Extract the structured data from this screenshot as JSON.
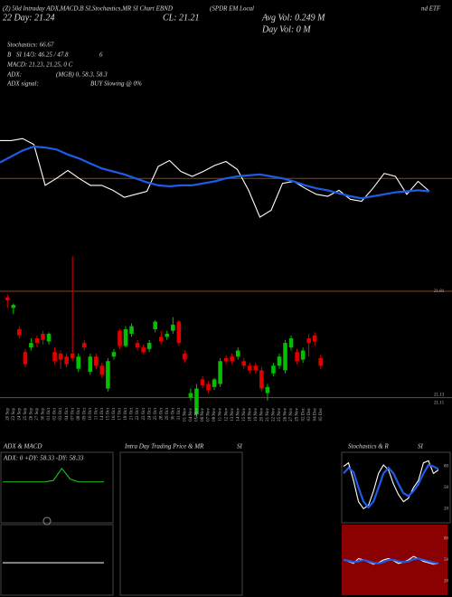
{
  "header": {
    "title": "(Z) 50d Intraday ADX,MACD,B SI,Stochastics,MR SI Chart EBND",
    "name": "(SPDR EM Local",
    "name_end": "nd ETF",
    "avg_vol": "Avg Vol: 0.249 M",
    "day_vol": "Day Vol: 0 M",
    "close": "CL: 21.21",
    "day22": "22 Day: 21.24",
    "stats": [
      "Stochastics: 66.67",
      "B",
      "SI 14/3: 46.25 / 47.8",
      "6",
      "MACD: 21.23, 21.25, 0  C",
      "ADX:",
      "(MGB) 0, 58.3, 58.3",
      "ADX signal:",
      "BUY Slowing @ 0%"
    ]
  },
  "chart_data": [
    {
      "type": "line",
      "ylim": [
        0,
        100
      ],
      "hline": 48,
      "hline_color": "#8b4513",
      "series": [
        {
          "color": "#ffffff",
          "values": [
            86,
            86,
            88,
            82,
            41,
            48,
            56,
            48,
            41,
            41,
            36,
            29,
            32,
            35,
            60,
            66,
            55,
            50,
            55,
            61,
            65,
            57,
            36,
            9,
            16,
            43,
            45,
            38,
            32,
            30,
            36,
            27,
            25,
            38,
            53,
            50,
            32,
            45,
            35
          ]
        },
        {
          "color": "#1e5be6",
          "values": [
            64,
            70,
            76,
            80,
            79,
            77,
            72,
            68,
            63,
            58,
            55,
            52,
            48,
            44,
            41,
            40,
            41,
            41,
            43,
            45,
            48,
            50,
            51,
            52,
            50,
            48,
            45,
            41,
            38,
            36,
            33,
            30,
            28,
            30,
            32,
            34,
            35,
            36,
            35
          ]
        }
      ]
    },
    {
      "type": "candlestick",
      "ylim": [
        21.06,
        22.06
      ],
      "yticks": [
        21.81,
        21.13,
        21.11
      ],
      "up_color": "#00c000",
      "down_color": "#e00000",
      "categories": [
        "20 Sep",
        "23 Sep",
        "24 Sep",
        "25 Sep",
        "26 Sep",
        "27 Sep",
        "30 Sep",
        "01 Oct",
        "02 Oct",
        "03 Oct",
        "04 Oct",
        "07 Oct",
        "08 Oct",
        "09 Oct",
        "10 Oct",
        "11 Oct",
        "14 Oct",
        "15 Oct",
        "16 Oct",
        "17 Oct",
        "18 Oct",
        "21 Oct",
        "22 Oct",
        "23 Oct",
        "24 Oct",
        "25 Oct",
        "28 Oct",
        "29 Oct",
        "30 Oct",
        "31 Oct",
        "01 Nov",
        "04 Nov",
        "05 Nov",
        "06 Nov",
        "07 Nov",
        "08 Nov",
        "11 Nov",
        "12 Nov",
        "13 Nov",
        "14 Nov",
        "15 Nov",
        "18 Nov",
        "19 Nov",
        "20 Nov",
        "21 Nov",
        "22 Nov",
        "25 Nov",
        "26 Nov",
        "27 Nov",
        "29 Nov",
        "02 Dec",
        "03 Dec",
        "04 Dec",
        "05 Dec"
      ],
      "open": [
        21.77,
        21.7,
        21.56,
        21.41,
        21.44,
        21.5,
        21.53,
        21.48,
        21.41,
        21.4,
        21.38,
        21.4,
        21.3,
        21.47,
        21.28,
        21.38,
        21.32,
        21.17,
        21.38,
        21.55,
        21.45,
        21.53,
        21.47,
        21.44,
        21.43,
        21.56,
        21.51,
        21.51,
        21.55,
        21.61,
        21.4,
        21.11,
        21.0,
        21.23,
        21.2,
        21.18,
        21.2,
        21.37,
        21.38,
        21.38,
        21.35,
        21.32,
        21.32,
        21.29,
        21.14,
        21.27,
        21.32,
        21.29,
        21.44,
        21.41,
        21.36,
        21.5,
        21.52,
        21.37
      ],
      "close": [
        21.75,
        21.72,
        21.52,
        21.33,
        21.47,
        21.47,
        21.49,
        21.53,
        21.35,
        21.36,
        21.33,
        21.37,
        21.38,
        21.44,
        21.38,
        21.32,
        21.26,
        21.35,
        21.41,
        21.45,
        21.56,
        21.58,
        21.44,
        21.41,
        21.47,
        21.61,
        21.48,
        21.53,
        21.59,
        21.47,
        21.36,
        21.14,
        21.17,
        21.19,
        21.16,
        21.23,
        21.35,
        21.35,
        21.35,
        21.42,
        21.32,
        21.29,
        21.29,
        21.17,
        21.18,
        21.32,
        21.38,
        21.47,
        21.5,
        21.35,
        21.42,
        21.47,
        21.48,
        21.32
      ],
      "high": [
        21.79,
        21.73,
        21.58,
        21.43,
        21.5,
        21.52,
        21.55,
        21.54,
        21.44,
        21.42,
        21.4,
        22.04,
        21.4,
        21.49,
        21.4,
        21.4,
        21.34,
        21.37,
        21.43,
        21.56,
        21.58,
        21.6,
        21.49,
        21.46,
        21.49,
        21.62,
        21.55,
        21.55,
        21.64,
        21.62,
        21.42,
        21.17,
        21.2,
        21.25,
        21.22,
        21.24,
        21.37,
        21.39,
        21.4,
        21.44,
        21.37,
        21.34,
        21.34,
        21.31,
        21.2,
        21.34,
        21.4,
        21.49,
        21.52,
        21.43,
        21.44,
        21.53,
        21.54,
        21.39
      ],
      "low": [
        21.7,
        21.66,
        21.5,
        21.31,
        21.42,
        21.44,
        21.46,
        21.46,
        21.33,
        21.3,
        21.31,
        21.35,
        21.28,
        21.42,
        21.26,
        21.3,
        21.24,
        21.15,
        21.36,
        21.43,
        21.44,
        21.51,
        21.42,
        21.4,
        21.41,
        21.54,
        21.46,
        21.49,
        21.53,
        21.45,
        21.34,
        21.09,
        20.98,
        21.17,
        21.14,
        21.16,
        21.18,
        21.33,
        21.33,
        21.36,
        21.3,
        21.27,
        21.27,
        21.15,
        21.09,
        21.25,
        21.3,
        21.27,
        21.42,
        21.33,
        21.34,
        21.38,
        21.45,
        21.3
      ]
    },
    {
      "type": "line",
      "title": "ADX  & MACD",
      "label": "ADX: 0   +DY: 58.33  -DY: 58.33",
      "ylim": [
        0,
        100
      ],
      "series": [
        {
          "color": "#22c022",
          "values": [
            58,
            58,
            58,
            58,
            58,
            58,
            60,
            77,
            62,
            58,
            58,
            58,
            58
          ]
        }
      ]
    },
    {
      "type": "line",
      "ylim": [
        0,
        100
      ],
      "series": [
        {
          "color": "#ffffff",
          "values": [
            46,
            46,
            46,
            46,
            46,
            46,
            46,
            46,
            46,
            46,
            46,
            46
          ]
        }
      ]
    },
    {
      "type": "empty",
      "title": "Intra Day Trading Price  & MR",
      "title_end": "SI"
    },
    {
      "type": "line",
      "title": "Stochastics & R",
      "title_end": "SI",
      "ylim": [
        0,
        100
      ],
      "yticks": [
        80,
        50,
        20
      ],
      "series": [
        {
          "color": "#ffffff",
          "values": [
            80,
            85,
            60,
            30,
            20,
            25,
            45,
            70,
            82,
            75,
            55,
            40,
            30,
            35,
            50,
            60,
            85,
            88,
            70,
            75
          ]
        },
        {
          "color": "#1e5be6",
          "values": [
            70,
            78,
            72,
            50,
            30,
            22,
            30,
            50,
            70,
            78,
            70,
            55,
            42,
            38,
            45,
            55,
            70,
            82,
            80,
            76
          ]
        }
      ]
    },
    {
      "type": "line",
      "ylim": [
        0,
        100
      ],
      "yticks": [
        80,
        50,
        20
      ],
      "background": "#8b0000",
      "series": [
        {
          "color": "#ffffff",
          "values": [
            50,
            48,
            45,
            52,
            50,
            47,
            44,
            46,
            50,
            52,
            49,
            45,
            47,
            50,
            55,
            52,
            48,
            46,
            44,
            45
          ]
        },
        {
          "color": "#1e5be6",
          "values": [
            50,
            49,
            47,
            48,
            50,
            48,
            46,
            45,
            47,
            50,
            50,
            48,
            47,
            48,
            51,
            52,
            50,
            48,
            46,
            45
          ]
        }
      ]
    }
  ]
}
